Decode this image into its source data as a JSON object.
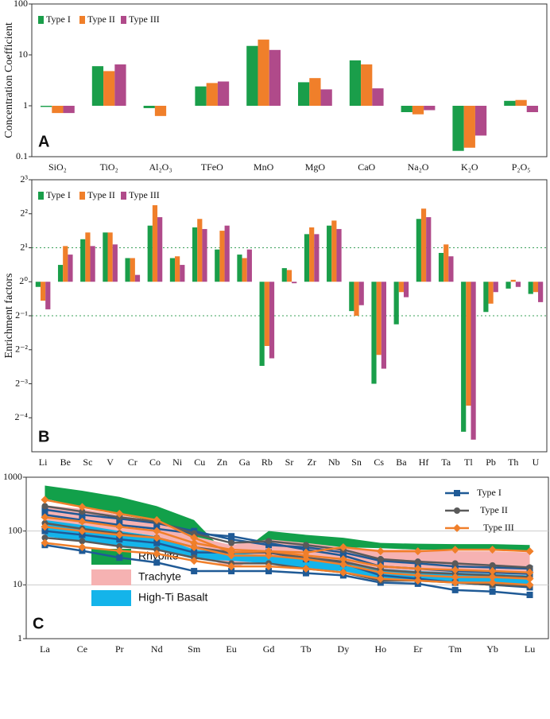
{
  "chart_data": [
    {
      "type": "bar",
      "label": "A",
      "ylabel": "Concentration Coefficient",
      "log": true,
      "categories": [
        "SiO₂",
        "TiO₂",
        "Al₂O₃",
        "TFeO",
        "MnO",
        "MgO",
        "CaO",
        "Na₂O",
        "K₂O",
        "P₂O₅"
      ],
      "ylim": [
        0.1,
        100
      ],
      "yticks": [
        0.1,
        1,
        10,
        100
      ],
      "legend": "upper left",
      "series": [
        {
          "name": "Type I",
          "color": "#1a9e4a",
          "values": [
            0.95,
            6,
            0.9,
            2.4,
            15,
            2.9,
            7.8,
            0.75,
            0.13,
            1.25
          ]
        },
        {
          "name": "Type II",
          "color": "#f07f2a",
          "values": [
            0.72,
            4.8,
            0.63,
            2.8,
            20,
            3.5,
            6.5,
            0.68,
            0.15,
            1.3
          ]
        },
        {
          "name": "Type III",
          "color": "#b04a8a",
          "values": [
            0.72,
            6.5,
            null,
            3.0,
            12.5,
            2.1,
            2.2,
            0.82,
            0.26,
            0.75
          ]
        }
      ]
    },
    {
      "type": "bar",
      "label": "B",
      "ylabel": "Enrichment factors",
      "log": true,
      "categories": [
        "Li",
        "Be",
        "Sc",
        "V",
        "Cr",
        "Co",
        "Ni",
        "Cu",
        "Zn",
        "Ga",
        "Rb",
        "Sr",
        "Zr",
        "Nb",
        "Sn",
        "Cs",
        "Ba",
        "Hf",
        "Ta",
        "Tl",
        "Pb",
        "Th",
        "U"
      ],
      "ylim": [
        0.03125,
        8
      ],
      "yticks": [
        {
          "value": 8,
          "label": "2³"
        },
        {
          "value": 4,
          "label": "2²"
        },
        {
          "value": 2,
          "label": "2¹"
        },
        {
          "value": 1,
          "label": "2⁰"
        },
        {
          "value": 0.5,
          "label": "2⁻¹"
        },
        {
          "value": 0.25,
          "label": "2⁻²"
        },
        {
          "value": 0.125,
          "label": "2⁻³"
        },
        {
          "value": 0.0625,
          "label": "2⁻⁴"
        }
      ],
      "reference_lines": [
        2,
        0.5
      ],
      "legend": "upper left",
      "series": [
        {
          "name": "Type I",
          "color": "#1a9e4a",
          "values": [
            0.9,
            1.41,
            2.38,
            2.73,
            1.62,
            3.14,
            1.62,
            3.03,
            1.93,
            1.74,
            0.18,
            1.32,
            2.64,
            3.14,
            0.55,
            0.125,
            0.42,
            3.6,
            1.8,
            0.047,
            0.54,
            0.87,
            0.78
          ]
        },
        {
          "name": "Type II",
          "color": "#f07f2a",
          "values": [
            0.68,
            2.07,
            2.73,
            2.73,
            1.62,
            4.76,
            1.68,
            3.6,
            2.83,
            1.62,
            0.27,
            1.27,
            3.03,
            3.48,
            0.5,
            0.225,
            0.81,
            4.44,
            2.14,
            0.08,
            0.64,
            1.04,
            0.81
          ]
        },
        {
          "name": "Type III",
          "color": "#b04a8a",
          "values": [
            0.57,
            1.74,
            2.07,
            2.14,
            1.15,
            3.73,
            1.41,
            2.93,
            3.14,
            1.93,
            0.21,
            0.97,
            2.64,
            2.93,
            0.62,
            0.17,
            0.73,
            3.73,
            1.68,
            0.04,
            0.81,
            0.9,
            0.66
          ]
        }
      ]
    },
    {
      "type": "line",
      "label": "C",
      "log": true,
      "categories": [
        "La",
        "Ce",
        "Pr",
        "Nd",
        "Sm",
        "Eu",
        "Gd",
        "Tb",
        "Dy",
        "Ho",
        "Er",
        "Tm",
        "Yb",
        "Lu"
      ],
      "ylim": [
        1,
        1000
      ],
      "yticks": [
        1,
        10,
        100,
        1000
      ],
      "grid": true,
      "legend": "upper right",
      "areas": [
        {
          "name": "Rhyolite",
          "color": "#12a04a",
          "upper": [
            700,
            560,
            430,
            290,
            160,
            30,
            100,
            85,
            75,
            60,
            58,
            57,
            57,
            55
          ],
          "lower": [
            400,
            280,
            200,
            150,
            70,
            22,
            55,
            55,
            50,
            48,
            45,
            45,
            45,
            42
          ]
        },
        {
          "name": "Trachyte",
          "color": "#f6b2b2",
          "upper": [
            300,
            260,
            200,
            150,
            80,
            55,
            70,
            60,
            50,
            45,
            45,
            42,
            42,
            40
          ],
          "lower": [
            150,
            120,
            100,
            80,
            40,
            20,
            35,
            30,
            25,
            18,
            17,
            17,
            16,
            15
          ]
        },
        {
          "name": "High-Ti Basalt",
          "color": "#14b4ea",
          "upper": [
            160,
            130,
            100,
            80,
            45,
            40,
            35,
            30,
            27,
            20,
            18,
            17,
            16,
            15
          ],
          "lower": [
            80,
            65,
            50,
            45,
            30,
            28,
            25,
            20,
            18,
            13,
            12,
            11,
            10,
            10
          ]
        }
      ],
      "series": [
        {
          "name": "Type I",
          "color": "#1f5a96",
          "marker": "square",
          "lines": [
            [
              55,
              43,
              32,
              26,
              18,
              18,
              18,
              16.5,
              15,
              11,
              10.5,
              8,
              7.5,
              6.5
            ],
            [
              100,
              85,
              70,
              60,
              40,
              40,
              40,
              30,
              25,
              15,
              13,
              11,
              10,
              9
            ],
            [
              200,
              160,
              130,
              110,
              90,
              80,
              60,
              45,
              35,
              22,
              20,
              18,
              17,
              16
            ],
            [
              250,
              200,
              170,
              140,
              100,
              70,
              55,
              50,
              40,
              28,
              25,
              22,
              21,
              20
            ]
          ]
        },
        {
          "name": "Type II",
          "color": "#5a5a5a",
          "marker": "circle",
          "lines": [
            [
              75,
              65,
              52,
              45,
              32,
              25,
              25,
              20,
              17,
              12,
              12,
              11,
              10,
              9.5
            ],
            [
              140,
              110,
              90,
              75,
              50,
              40,
              40,
              32,
              27,
              19,
              17,
              16,
              15,
              14
            ],
            [
              290,
              230,
              180,
              150,
              90,
              60,
              65,
              55,
              45,
              30,
              27,
              25,
              23,
              21
            ]
          ]
        },
        {
          "name": "Type III",
          "color": "#f07f2a",
          "marker": "diamond",
          "lines": [
            [
              60,
              50,
              43,
              38,
              28,
              22,
              22,
              20,
              17,
              13,
              12,
              11,
              11,
              10
            ],
            [
              120,
              100,
              85,
              75,
              50,
              35,
              35,
              30,
              24,
              17,
              15,
              14,
              14,
              13
            ],
            [
              180,
              150,
              120,
              100,
              60,
              45,
              42,
              35,
              30,
              22,
              20,
              19,
              18,
              17
            ],
            [
              380,
              280,
              210,
              160,
              75,
              40,
              42,
              40,
              50,
              42,
              42,
              45,
              45,
              42
            ]
          ]
        }
      ]
    }
  ]
}
